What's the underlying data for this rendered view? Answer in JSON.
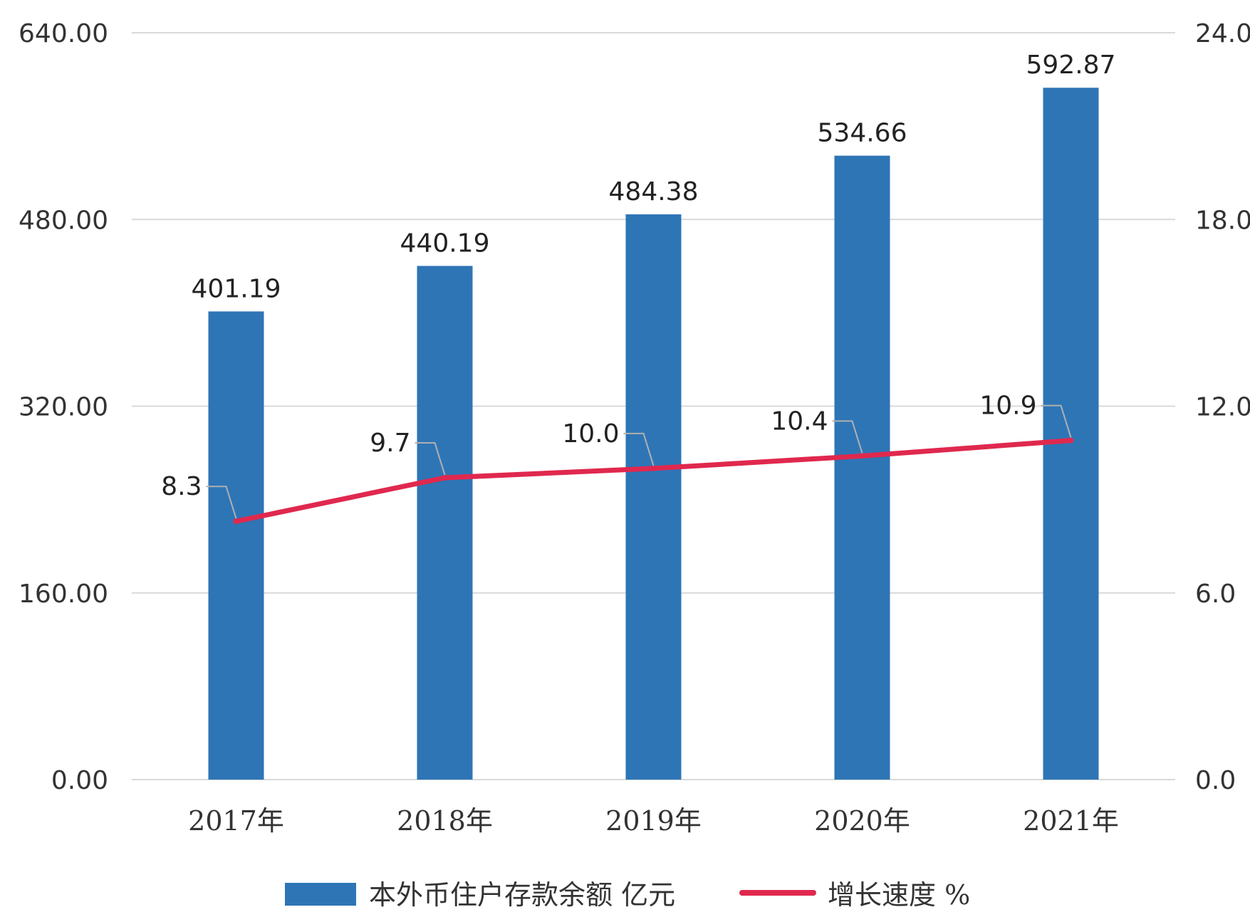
{
  "chart_data": {
    "type": "bar",
    "categories": [
      "2017年",
      "2018年",
      "2019年",
      "2020年",
      "2021年"
    ],
    "series": [
      {
        "name": "本外币住户存款余额 亿元",
        "type": "bar",
        "axis": "left",
        "values": [
          401.19,
          440.19,
          484.38,
          534.66,
          592.87
        ],
        "labels": [
          "401.19",
          "440.19",
          "484.38",
          "534.66",
          "592.87"
        ],
        "color": "#2e75b6"
      },
      {
        "name": "增长速度 %",
        "type": "line",
        "axis": "right",
        "values": [
          8.3,
          9.7,
          10.0,
          10.4,
          10.9
        ],
        "labels": [
          "8.3",
          "9.7",
          "10.0",
          "10.4",
          "10.9"
        ],
        "color": "#e0284e"
      }
    ],
    "y_left": {
      "range": [
        0,
        640
      ],
      "ticks": [
        0,
        160,
        320,
        480,
        640
      ],
      "tick_labels": [
        "0.00",
        "160.00",
        "320.00",
        "480.00",
        "640.00"
      ]
    },
    "y_right": {
      "range": [
        0,
        24
      ],
      "ticks": [
        0,
        6,
        12,
        18,
        24
      ],
      "tick_labels": [
        "0.0",
        "6.0",
        "12.0",
        "18.0",
        "24.0"
      ]
    },
    "grid": true,
    "legend_position": "bottom"
  }
}
